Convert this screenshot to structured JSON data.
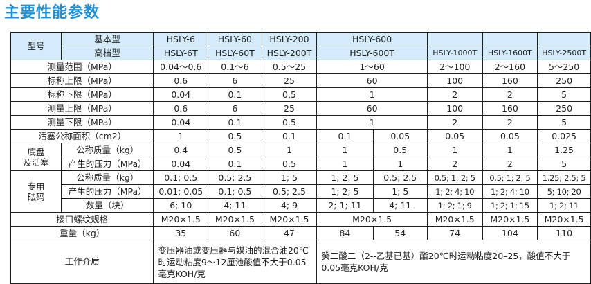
{
  "title": "主要性能参数",
  "table": {
    "model_label": "型号",
    "basic_label": "基本型",
    "advanced_label": "高档型",
    "basic_models": [
      "HSLY-6",
      "HSLY-60",
      "HSLY-200",
      "HSLY-600"
    ],
    "advanced_models": [
      "HSLY-6T",
      "HSLY-60T",
      "HSLY-200T",
      "HSLY-600T",
      "HSLY-1000T",
      "HSLY-1600T",
      "HSLY-2500T"
    ],
    "rows": {
      "range": {
        "label": "测量范围（MPa）",
        "v": [
          "0.04～0.6",
          "0.1～6",
          "0.5～25",
          "1～60",
          "2～100",
          "2～160",
          "5～250"
        ]
      },
      "nominal_upper": {
        "label": "标称上限（MPa）",
        "v": [
          "0.6",
          "6",
          "25",
          "60",
          "100",
          "160",
          "250"
        ]
      },
      "nominal_lower": {
        "label": "标称下限（MPa）",
        "v": [
          "0.04",
          "0.1",
          "0.5",
          "1",
          "2",
          "2",
          "5"
        ]
      },
      "measure_upper": {
        "label": "测量上限（MPa）",
        "v": [
          "0.6",
          "6",
          "25",
          "60",
          "100",
          "160",
          "250"
        ]
      },
      "measure_lower": {
        "label": "测量下限（MPa）",
        "v": [
          "0.04",
          "0.1",
          "0.5",
          "1",
          "2",
          "2",
          "5"
        ]
      },
      "piston_area": {
        "label": "活塞公称面积（cm2）",
        "v": [
          "1",
          "0.5",
          "0.1",
          "0.1",
          "0.05",
          "0.05",
          "0.05",
          "0.025"
        ]
      }
    },
    "chassis": {
      "group_label": "底盘\n及活塞",
      "mass": {
        "label": "公称质量（kg）",
        "v": [
          "0.4",
          "0.5",
          "1",
          "1",
          "0.5",
          "1",
          "1",
          "1.25"
        ]
      },
      "pressure": {
        "label": "产生的压力（MPa）",
        "v": [
          "0.04",
          "0.1",
          "0.5",
          "1",
          "1",
          "2",
          "2",
          "5"
        ]
      }
    },
    "weights": {
      "group_label": "专用\n砝码",
      "mass": {
        "label": "公称质量（kg）",
        "v": [
          "0.1; 0.5",
          "0.5; 2.5",
          "1; 5",
          "1; 2; 5",
          "0.5; 2.5",
          "0.5; 1; 2; 5",
          "0.5; 1; 2; 5",
          "1.25; 2.5; 5"
        ]
      },
      "pressure": {
        "label": "产生的压力（MPa）",
        "v": [
          "0.01; 0.05",
          "0.1; 0.5",
          "0.5; 2.5",
          "1; 2; 5",
          "1; 5",
          "1; 2; 4; 10",
          "1; 2; 4; 10",
          "5; 10; 20"
        ]
      },
      "count": {
        "label": "数量（块）",
        "v": [
          "6; 10",
          "4; 11",
          "4; 9",
          "2; 1; 11",
          "4; 11",
          "1; 2; 1; 9",
          "1; 2; 1; 15",
          "1; 2; 11"
        ]
      }
    },
    "thread": {
      "label": "接口螺纹规格",
      "v": [
        "M20×1.5",
        "M20×1.5",
        "M20×1.5",
        "M20×1.5",
        "M20×1.5",
        "M20×1.5",
        "M20×1.5"
      ]
    },
    "weight": {
      "label": "重量（kg）",
      "v": [
        "35",
        "60",
        "47",
        "84",
        "54",
        "74",
        "104",
        "110"
      ]
    },
    "medium": {
      "label": "工作介质",
      "left": "变压器油或变压器与媒油的混合油20℃时运动粘度9～12厘池酸值不大于0.05毫克KOH/克",
      "right": "癸二酸二（2--乙基已基）酯20℃时运动粘度20–25，酸值不大于0.05毫克KOH/克"
    }
  }
}
